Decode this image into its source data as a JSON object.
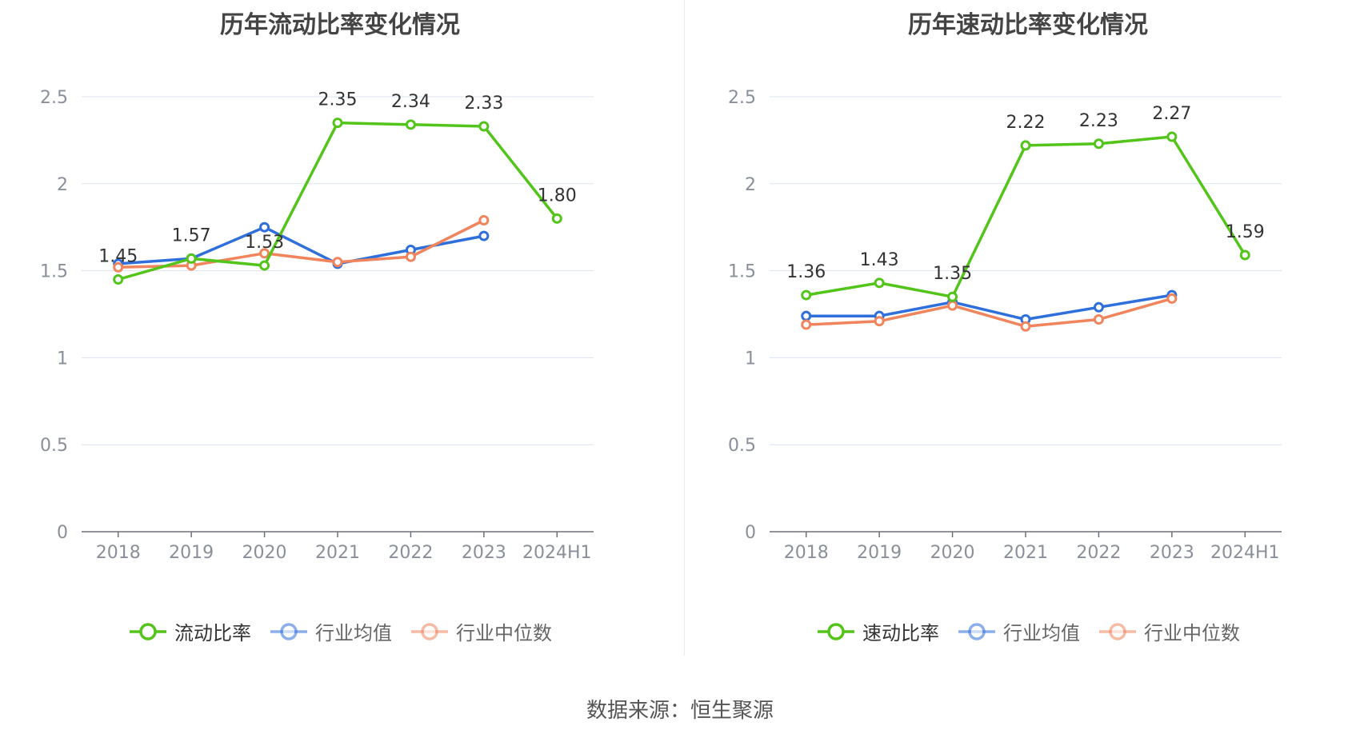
{
  "source": "数据来源：恒生聚源",
  "chart_data": [
    {
      "type": "line",
      "title": "历年流动比率变化情况",
      "categories": [
        "2018",
        "2019",
        "2020",
        "2021",
        "2022",
        "2023",
        "2024H1"
      ],
      "ylim": [
        0,
        2.5
      ],
      "yticks": [
        "0",
        "0.5",
        "1",
        "1.5",
        "2",
        "2.5"
      ],
      "grid": true,
      "legend_position": "bottom",
      "series": [
        {
          "name": "流动比率",
          "color": "#52c41a",
          "values": [
            1.45,
            1.57,
            1.53,
            2.35,
            2.34,
            2.33,
            1.8
          ],
          "labels": [
            "1.45",
            "1.57",
            "1.53",
            "2.35",
            "2.34",
            "2.33",
            "1.80"
          ]
        },
        {
          "name": "行业均值",
          "color": "#2f6fdc",
          "values": [
            1.54,
            1.57,
            1.75,
            1.54,
            1.62,
            1.7,
            null
          ]
        },
        {
          "name": "行业中位数",
          "color": "#f0845c",
          "values": [
            1.52,
            1.53,
            1.6,
            1.55,
            1.58,
            1.79,
            null
          ]
        }
      ]
    },
    {
      "type": "line",
      "title": "历年速动比率变化情况",
      "categories": [
        "2018",
        "2019",
        "2020",
        "2021",
        "2022",
        "2023",
        "2024H1"
      ],
      "ylim": [
        0,
        2.5
      ],
      "yticks": [
        "0",
        "0.5",
        "1",
        "1.5",
        "2",
        "2.5"
      ],
      "grid": true,
      "legend_position": "bottom",
      "series": [
        {
          "name": "速动比率",
          "color": "#52c41a",
          "values": [
            1.36,
            1.43,
            1.35,
            2.22,
            2.23,
            2.27,
            1.59
          ],
          "labels": [
            "1.36",
            "1.43",
            "1.35",
            "2.22",
            "2.23",
            "2.27",
            "1.59"
          ]
        },
        {
          "name": "行业均值",
          "color": "#2f6fdc",
          "values": [
            1.24,
            1.24,
            1.32,
            1.22,
            1.29,
            1.36,
            null
          ]
        },
        {
          "name": "行业中位数",
          "color": "#f0845c",
          "values": [
            1.19,
            1.21,
            1.3,
            1.18,
            1.22,
            1.34,
            null
          ]
        }
      ]
    }
  ]
}
